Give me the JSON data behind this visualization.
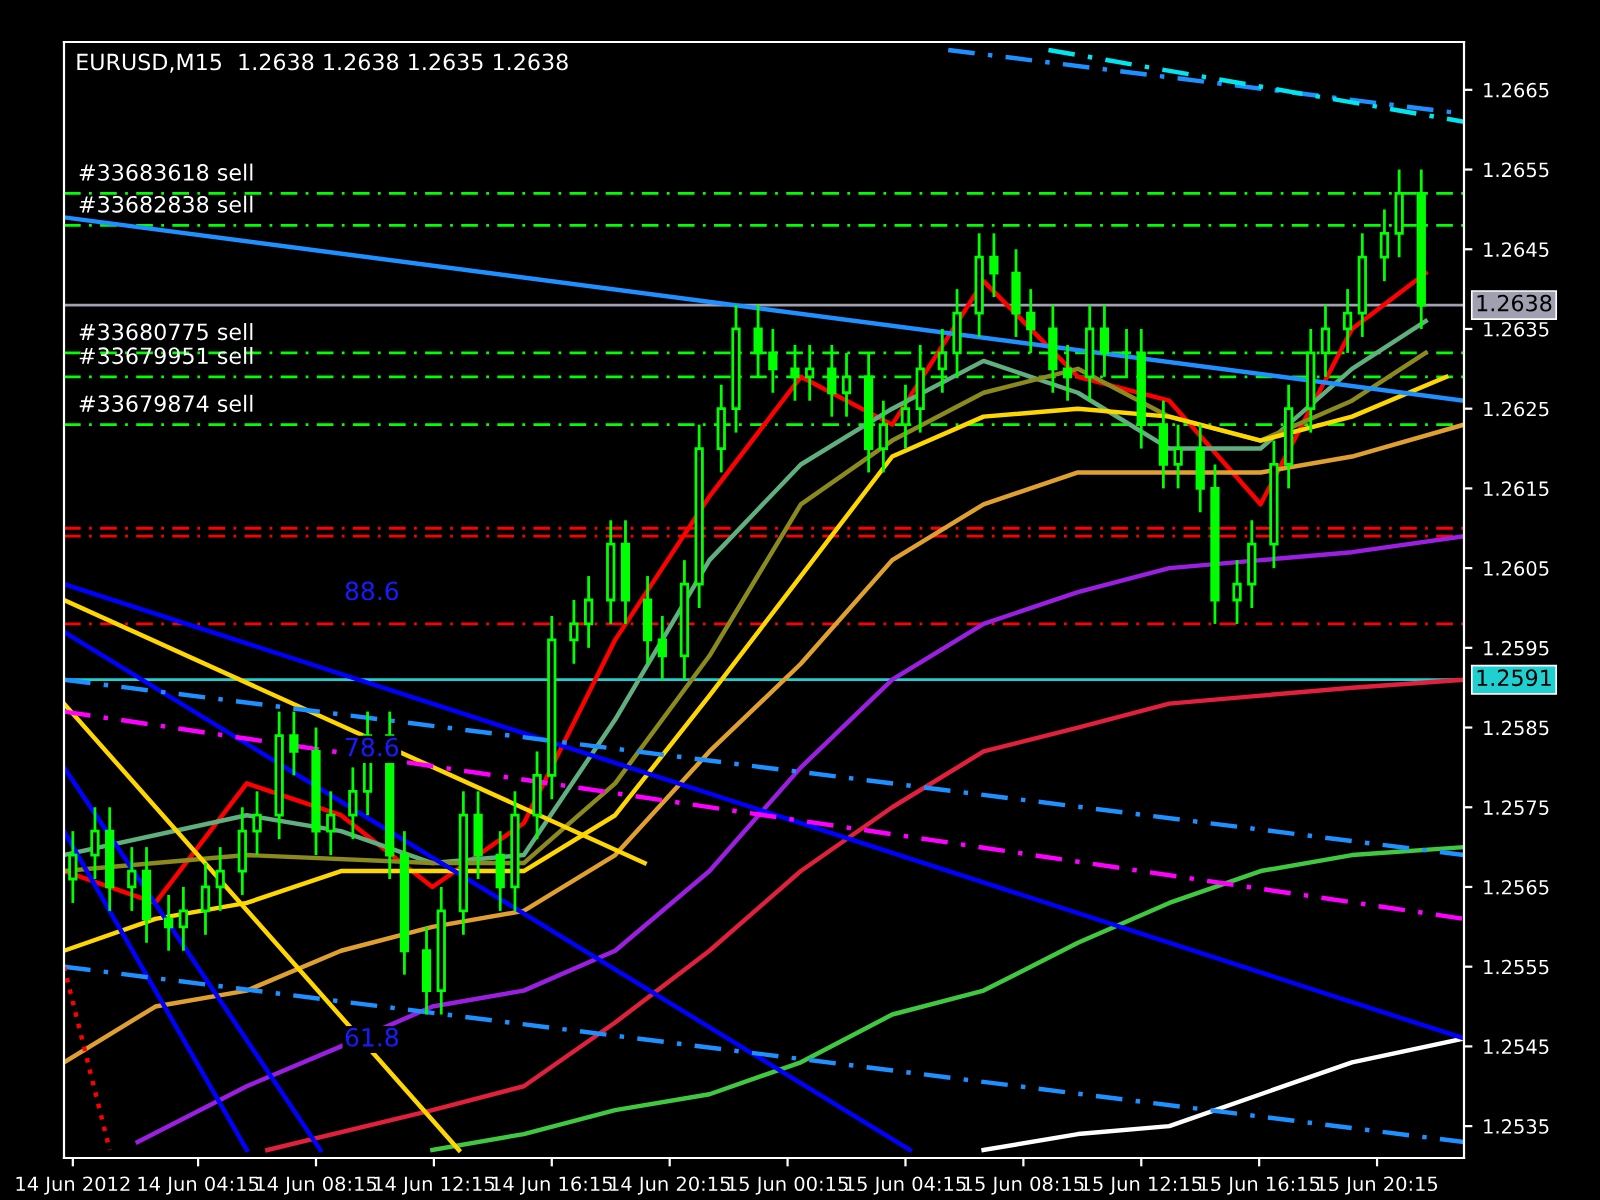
{
  "chart_data": {
    "type": "candlestick",
    "title": "EURUSD,M15  1.2638 1.2638 1.2635 1.2638",
    "color": "#00ff00",
    "x": [
      "2012-06-14T00:00",
      "2012-06-14T00:45",
      "2012-06-14T01:15",
      "2012-06-14T02:00",
      "2012-06-14T02:30",
      "2012-06-14T03:15",
      "2012-06-14T03:45",
      "2012-06-14T04:30",
      "2012-06-14T05:00",
      "2012-06-14T05:45",
      "2012-06-14T06:15",
      "2012-06-14T07:00",
      "2012-06-14T07:30",
      "2012-06-14T08:15",
      "2012-06-14T08:45",
      "2012-06-14T09:30",
      "2012-06-14T10:00",
      "2012-06-14T10:45",
      "2012-06-14T11:15",
      "2012-06-14T12:00",
      "2012-06-14T12:30",
      "2012-06-14T13:15",
      "2012-06-14T13:45",
      "2012-06-14T14:30",
      "2012-06-14T15:00",
      "2012-06-14T15:45",
      "2012-06-14T16:15",
      "2012-06-14T17:00",
      "2012-06-14T17:30",
      "2012-06-14T18:15",
      "2012-06-14T18:45",
      "2012-06-14T19:30",
      "2012-06-14T20:00",
      "2012-06-14T20:45",
      "2012-06-14T21:15",
      "2012-06-14T22:00",
      "2012-06-14T22:30",
      "2012-06-14T23:15",
      "2012-06-14T23:45",
      "2012-06-15T00:30",
      "2012-06-15T01:00",
      "2012-06-15T01:45",
      "2012-06-15T02:15",
      "2012-06-15T03:00",
      "2012-06-15T03:30",
      "2012-06-15T04:15",
      "2012-06-15T04:45",
      "2012-06-15T05:30",
      "2012-06-15T06:00",
      "2012-06-15T06:45",
      "2012-06-15T07:15",
      "2012-06-15T08:00",
      "2012-06-15T08:30",
      "2012-06-15T09:15",
      "2012-06-15T09:45",
      "2012-06-15T10:30",
      "2012-06-15T11:00",
      "2012-06-15T11:45",
      "2012-06-15T12:15",
      "2012-06-15T13:00",
      "2012-06-15T13:30",
      "2012-06-15T14:15",
      "2012-06-15T14:45",
      "2012-06-15T15:30",
      "2012-06-15T16:00",
      "2012-06-15T16:45",
      "2012-06-15T17:15",
      "2012-06-15T18:00",
      "2012-06-15T18:30",
      "2012-06-15T19:15",
      "2012-06-15T19:45",
      "2012-06-15T20:30",
      "2012-06-15T21:00",
      "2012-06-15T21:45"
    ],
    "ohlc": [
      [
        1.2566,
        1.2572,
        1.2563,
        1.2569
      ],
      [
        1.2569,
        1.2575,
        1.2566,
        1.2572
      ],
      [
        1.2572,
        1.2575,
        1.2562,
        1.2565
      ],
      [
        1.2565,
        1.257,
        1.2562,
        1.2567
      ],
      [
        1.2567,
        1.257,
        1.2558,
        1.2561
      ],
      [
        1.2561,
        1.2564,
        1.2557,
        1.256
      ],
      [
        1.256,
        1.2565,
        1.2557,
        1.2562
      ],
      [
        1.2562,
        1.2568,
        1.2559,
        1.2565
      ],
      [
        1.2565,
        1.257,
        1.2562,
        1.2567
      ],
      [
        1.2567,
        1.2575,
        1.2564,
        1.2572
      ],
      [
        1.2572,
        1.2577,
        1.2569,
        1.2574
      ],
      [
        1.2574,
        1.2587,
        1.2571,
        1.2584
      ],
      [
        1.2584,
        1.2587,
        1.2579,
        1.2582
      ],
      [
        1.2582,
        1.2585,
        1.2569,
        1.2572
      ],
      [
        1.2572,
        1.2577,
        1.2569,
        1.2574
      ],
      [
        1.2574,
        1.258,
        1.2571,
        1.2577
      ],
      [
        1.2577,
        1.2587,
        1.2574,
        1.2584
      ],
      [
        1.2584,
        1.2587,
        1.2566,
        1.2569
      ],
      [
        1.2569,
        1.2572,
        1.2554,
        1.2557
      ],
      [
        1.2557,
        1.256,
        1.2549,
        1.2552
      ],
      [
        1.2552,
        1.2565,
        1.2549,
        1.2562
      ],
      [
        1.2562,
        1.2577,
        1.2559,
        1.2574
      ],
      [
        1.2574,
        1.2577,
        1.2566,
        1.2569
      ],
      [
        1.2569,
        1.2572,
        1.2562,
        1.2565
      ],
      [
        1.2565,
        1.2577,
        1.2562,
        1.2574
      ],
      [
        1.2574,
        1.2582,
        1.2571,
        1.2579
      ],
      [
        1.2579,
        1.2599,
        1.2576,
        1.2596
      ],
      [
        1.2596,
        1.2601,
        1.2593,
        1.2598
      ],
      [
        1.2598,
        1.2604,
        1.2595,
        1.2601
      ],
      [
        1.2601,
        1.2611,
        1.2598,
        1.2608
      ],
      [
        1.2608,
        1.2611,
        1.2598,
        1.2601
      ],
      [
        1.2601,
        1.2604,
        1.2593,
        1.2596
      ],
      [
        1.2596,
        1.2599,
        1.2591,
        1.2594
      ],
      [
        1.2594,
        1.2606,
        1.2591,
        1.2603
      ],
      [
        1.2603,
        1.2623,
        1.26,
        1.262
      ],
      [
        1.262,
        1.2628,
        1.2617,
        1.2625
      ],
      [
        1.2625,
        1.2638,
        1.2622,
        1.2635
      ],
      [
        1.2635,
        1.2638,
        1.2629,
        1.2632
      ],
      [
        1.2632,
        1.2635,
        1.2627,
        1.263
      ],
      [
        1.263,
        1.2633,
        1.2626,
        1.2629
      ],
      [
        1.2629,
        1.2633,
        1.2626,
        1.263
      ],
      [
        1.263,
        1.2633,
        1.2624,
        1.2627
      ],
      [
        1.2627,
        1.2632,
        1.2624,
        1.2629
      ],
      [
        1.2629,
        1.2632,
        1.2617,
        1.262
      ],
      [
        1.262,
        1.2626,
        1.2617,
        1.2623
      ],
      [
        1.2623,
        1.2628,
        1.262,
        1.2625
      ],
      [
        1.2625,
        1.2633,
        1.2622,
        1.263
      ],
      [
        1.263,
        1.2635,
        1.2627,
        1.2632
      ],
      [
        1.2632,
        1.264,
        1.2629,
        1.2637
      ],
      [
        1.2637,
        1.2647,
        1.2634,
        1.2644
      ],
      [
        1.2644,
        1.2647,
        1.2639,
        1.2642
      ],
      [
        1.2642,
        1.2645,
        1.2634,
        1.2637
      ],
      [
        1.2637,
        1.264,
        1.2632,
        1.2635
      ],
      [
        1.2635,
        1.2638,
        1.2627,
        1.263
      ],
      [
        1.263,
        1.2633,
        1.2626,
        1.2629
      ],
      [
        1.2629,
        1.2638,
        1.2626,
        1.2635
      ],
      [
        1.2635,
        1.2638,
        1.2629,
        1.2632
      ],
      [
        1.2632,
        1.2635,
        1.2629,
        1.2632
      ],
      [
        1.2632,
        1.2635,
        1.262,
        1.2623
      ],
      [
        1.2623,
        1.2626,
        1.2615,
        1.2618
      ],
      [
        1.2618,
        1.2623,
        1.2615,
        1.262
      ],
      [
        1.262,
        1.2623,
        1.2612,
        1.2615
      ],
      [
        1.2615,
        1.2618,
        1.2598,
        1.2601
      ],
      [
        1.2601,
        1.2606,
        1.2598,
        1.2603
      ],
      [
        1.2603,
        1.2611,
        1.26,
        1.2608
      ],
      [
        1.2608,
        1.2621,
        1.2605,
        1.2618
      ],
      [
        1.2618,
        1.2628,
        1.2615,
        1.2625
      ],
      [
        1.2625,
        1.2635,
        1.2622,
        1.2632
      ],
      [
        1.2632,
        1.2638,
        1.2629,
        1.2635
      ],
      [
        1.2635,
        1.264,
        1.2632,
        1.2637
      ],
      [
        1.2637,
        1.2647,
        1.2634,
        1.2644
      ],
      [
        1.2644,
        1.265,
        1.2641,
        1.2647
      ],
      [
        1.2647,
        1.2655,
        1.2644,
        1.2652
      ],
      [
        1.2652,
        1.2655,
        1.2635,
        1.2638
      ]
    ],
    "series": [
      {
        "type": "line",
        "color": "#ff0000",
        "x": [
          "2012-06-13T23:42",
          "2012-06-14T02:48",
          "2012-06-14T05:54",
          "2012-06-14T09:06",
          "2012-06-14T12:12",
          "2012-06-14T15:18",
          "2012-06-14T18:24",
          "2012-06-14T21:36",
          "2012-06-15T00:42",
          "2012-06-15T03:48",
          "2012-06-15T06:54",
          "2012-06-15T10:06",
          "2012-06-15T13:12",
          "2012-06-15T16:18",
          "2012-06-15T19:24",
          "2012-06-15T21:54"
        ],
        "values": [
          1.2567,
          1.2563,
          1.2578,
          1.2574,
          1.2565,
          1.2573,
          1.2596,
          1.2614,
          1.2629,
          1.2623,
          1.2641,
          1.2629,
          1.2626,
          1.2613,
          1.2635,
          1.2642
        ]
      },
      {
        "type": "line",
        "color": "#5faf7f",
        "x": [
          "2012-06-13T23:42",
          "2012-06-14T05:54",
          "2012-06-14T09:06",
          "2012-06-14T12:12",
          "2012-06-14T15:18",
          "2012-06-14T18:24",
          "2012-06-14T21:36",
          "2012-06-15T00:42",
          "2012-06-15T03:48",
          "2012-06-15T06:54",
          "2012-06-15T10:06",
          "2012-06-15T13:12",
          "2012-06-15T16:18",
          "2012-06-15T19:24",
          "2012-06-15T21:54"
        ],
        "values": [
          1.2569,
          1.2574,
          1.2572,
          1.2568,
          1.2569,
          1.2586,
          1.2606,
          1.2618,
          1.2625,
          1.2631,
          1.2627,
          1.262,
          1.262,
          1.263,
          1.2636
        ]
      },
      {
        "type": "line",
        "color": "#8a8a1e",
        "x": [
          "2012-06-13T23:42",
          "2012-06-14T05:54",
          "2012-06-14T12:12",
          "2012-06-14T15:18",
          "2012-06-14T18:24",
          "2012-06-14T21:36",
          "2012-06-15T00:42",
          "2012-06-15T03:48",
          "2012-06-15T06:54",
          "2012-06-15T10:06",
          "2012-06-15T13:12",
          "2012-06-15T16:18",
          "2012-06-15T19:24",
          "2012-06-15T21:54"
        ],
        "values": [
          1.2567,
          1.2569,
          1.2568,
          1.2568,
          1.2578,
          1.2594,
          1.2613,
          1.2621,
          1.2627,
          1.263,
          1.2624,
          1.2621,
          1.2626,
          1.2632
        ]
      },
      {
        "type": "line",
        "color": "#ffd700",
        "x": [
          "2012-06-13T23:42",
          "2012-06-14T02:48",
          "2012-06-14T05:54",
          "2012-06-14T09:06",
          "2012-06-14T12:12",
          "2012-06-14T15:18",
          "2012-06-14T18:24",
          "2012-06-14T21:36",
          "2012-06-15T00:42",
          "2012-06-15T03:48",
          "2012-06-15T06:54",
          "2012-06-15T10:06",
          "2012-06-15T13:12",
          "2012-06-15T16:18",
          "2012-06-15T19:24",
          "2012-06-15T22:36"
        ],
        "values": [
          1.2557,
          1.2561,
          1.2563,
          1.2567,
          1.2567,
          1.2567,
          1.2574,
          1.2589,
          1.2604,
          1.2619,
          1.2624,
          1.2625,
          1.2624,
          1.2621,
          1.2624,
          1.2629
        ]
      },
      {
        "type": "line",
        "color": "#e0a030",
        "x": [
          "2012-06-13T23:42",
          "2012-06-14T02:48",
          "2012-06-14T05:54",
          "2012-06-14T09:06",
          "2012-06-14T12:12",
          "2012-06-14T15:18",
          "2012-06-14T18:24",
          "2012-06-14T21:36",
          "2012-06-15T00:42",
          "2012-06-15T03:48",
          "2012-06-15T06:54",
          "2012-06-15T10:06",
          "2012-06-15T13:12",
          "2012-06-15T16:18",
          "2012-06-15T19:24",
          "2012-06-15T23:12"
        ],
        "values": [
          1.2543,
          1.255,
          1.2552,
          1.2557,
          1.256,
          1.2562,
          1.2569,
          1.2582,
          1.2593,
          1.2606,
          1.2613,
          1.2617,
          1.2617,
          1.2617,
          1.2619,
          1.2623
        ]
      },
      {
        "type": "line",
        "color": "#9b1fe0",
        "x": [
          "2012-06-14T02:12",
          "2012-06-14T05:54",
          "2012-06-14T09:06",
          "2012-06-14T12:12",
          "2012-06-14T15:18",
          "2012-06-14T18:24",
          "2012-06-14T21:36",
          "2012-06-15T00:42",
          "2012-06-15T03:48",
          "2012-06-15T06:54",
          "2012-06-15T10:06",
          "2012-06-15T13:12",
          "2012-06-15T16:18",
          "2012-06-15T19:24",
          "2012-06-15T23:12"
        ],
        "values": [
          1.2533,
          1.254,
          1.2545,
          1.255,
          1.2552,
          1.2557,
          1.2567,
          1.258,
          1.2591,
          1.2598,
          1.2602,
          1.2605,
          1.2606,
          1.2607,
          1.2609
        ]
      },
      {
        "type": "line",
        "color": "#e0203c",
        "x": [
          "2012-06-14T06:36",
          "2012-06-14T12:12",
          "2012-06-14T15:18",
          "2012-06-14T18:24",
          "2012-06-14T21:36",
          "2012-06-15T00:42",
          "2012-06-15T03:48",
          "2012-06-15T06:54",
          "2012-06-15T10:06",
          "2012-06-15T13:12",
          "2012-06-15T16:18",
          "2012-06-15T19:24",
          "2012-06-15T23:12"
        ],
        "values": [
          1.2532,
          1.2537,
          1.254,
          1.2548,
          1.2557,
          1.2567,
          1.2575,
          1.2582,
          1.2585,
          1.2588,
          1.2589,
          1.259,
          1.2591
        ]
      },
      {
        "type": "line",
        "color": "#40c840",
        "x": [
          "2012-06-14T12:12",
          "2012-06-14T15:18",
          "2012-06-14T18:24",
          "2012-06-14T21:36",
          "2012-06-15T00:42",
          "2012-06-15T03:48",
          "2012-06-15T06:54",
          "2012-06-15T10:06",
          "2012-06-15T13:12",
          "2012-06-15T16:18",
          "2012-06-15T19:24",
          "2012-06-15T23:12"
        ],
        "values": [
          1.2532,
          1.2534,
          1.2537,
          1.2539,
          1.2543,
          1.2549,
          1.2552,
          1.2558,
          1.2563,
          1.2567,
          1.2569,
          1.257
        ]
      },
      {
        "type": "line",
        "color": "#ffffff",
        "x": [
          "2012-06-15T06:54",
          "2012-06-15T10:06",
          "2012-06-15T13:12",
          "2012-06-15T16:18",
          "2012-06-15T19:24",
          "2012-06-15T23:12"
        ],
        "values": [
          1.2532,
          1.2534,
          1.2535,
          1.2539,
          1.2543,
          1.2546
        ]
      },
      {
        "type": "line",
        "color": "#0000ff",
        "x": [
          "2012-06-13T23:42",
          "2012-06-15T23:12"
        ],
        "values": [
          1.2603,
          1.2546
        ]
      },
      {
        "type": "line",
        "color": "#0000ff",
        "x": [
          "2012-06-13T23:42",
          "2012-06-15T04:24"
        ],
        "values": [
          1.2597,
          1.2532
        ]
      },
      {
        "type": "line",
        "color": "#0000ff",
        "x": [
          "2012-06-13T23:42",
          "2012-06-14T08:24"
        ],
        "values": [
          1.258,
          1.2532
        ]
      },
      {
        "type": "line",
        "color": "#0000ff",
        "x": [
          "2012-06-13T23:42",
          "2012-06-14T05:54"
        ],
        "values": [
          1.2572,
          1.2532
        ]
      },
      {
        "type": "line",
        "color": "#ffd700",
        "x": [
          "2012-06-13T23:42",
          "2012-06-14T19:24"
        ],
        "values": [
          1.2601,
          1.2568
        ]
      },
      {
        "type": "line",
        "color": "#ffd700",
        "x": [
          "2012-06-13T23:42",
          "2012-06-14T13:06"
        ],
        "values": [
          1.2588,
          1.2532
        ]
      },
      {
        "type": "line",
        "color": "#1e90ff",
        "x": [
          "2012-06-13T23:42",
          "2012-06-15T23:12"
        ],
        "values": [
          1.2649,
          1.2626
        ]
      },
      {
        "type": "line",
        "color": "#1e90ff",
        "line_style": "dashed",
        "x": [
          "2012-06-13T23:42",
          "2012-06-15T23:12"
        ],
        "values": [
          1.2591,
          1.2569
        ]
      },
      {
        "type": "line",
        "color": "#ff00ff",
        "line_style": "dashed",
        "x": [
          "2012-06-13T23:42",
          "2012-06-15T23:12"
        ],
        "values": [
          1.2587,
          1.2561
        ]
      },
      {
        "type": "line",
        "color": "#1e90ff",
        "line_style": "dashed",
        "x": [
          "2012-06-13T23:42",
          "2012-06-15T23:12"
        ],
        "values": [
          1.2555,
          1.2533
        ]
      },
      {
        "type": "line",
        "color": "#1e90ff",
        "line_style": "dashed",
        "x": [
          "2012-06-15T05:42",
          "2012-06-15T23:12"
        ],
        "values": [
          1.267,
          1.2662
        ]
      },
      {
        "type": "line",
        "color": "#00e5ee",
        "line_style": "dashed",
        "x": [
          "2012-06-15T09:06",
          "2012-06-15T23:12"
        ],
        "values": [
          1.267,
          1.2661
        ]
      },
      {
        "type": "line",
        "color": "#ff0000",
        "line_style": "dotted",
        "x": [
          "2012-06-13T23:42",
          "2012-06-14T01:15"
        ],
        "values": [
          1.2555,
          1.2532
        ]
      }
    ],
    "ref_lines": [
      {
        "axis": "y",
        "value": 1.2652,
        "label": "#33683618 sell",
        "color": "#00ff00",
        "line_style": "dashed"
      },
      {
        "axis": "y",
        "value": 1.2648,
        "label": "#33682838 sell",
        "color": "#00ff00",
        "line_style": "dashed"
      },
      {
        "axis": "y",
        "value": 1.2632,
        "label": "#33680775 sell",
        "color": "#00ff00",
        "line_style": "dashed"
      },
      {
        "axis": "y",
        "value": 1.2629,
        "label": "#33679951 sell",
        "color": "#00ff00",
        "line_style": "dashed"
      },
      {
        "axis": "y",
        "value": 1.2623,
        "label": "#33679874 sell",
        "color": "#00ff00",
        "line_style": "dashed"
      },
      {
        "axis": "y",
        "value": 1.261,
        "color": "#ff0000",
        "line_style": "dashed"
      },
      {
        "axis": "y",
        "value": 1.2609,
        "color": "#ff0000",
        "line_style": "dashed"
      },
      {
        "axis": "y",
        "value": 1.2598,
        "color": "#ff0000",
        "line_style": "dashed"
      },
      {
        "axis": "y",
        "value": 1.2638,
        "label": "1.2638",
        "color": "#a0a0b0",
        "line_style": "solid"
      },
      {
        "axis": "y",
        "value": 1.2591,
        "label": "1.2591",
        "color": "#20d0d0",
        "line_style": "solid"
      }
    ],
    "annotations": [
      "88.6",
      "78.6",
      "61.8"
    ],
    "xlim": [
      "2012-06-13T23:42",
      "2012-06-15T23:12"
    ],
    "ylim": [
      1.2531,
      1.2671
    ],
    "xticks": [
      {
        "value": "2012-06-14T00:00",
        "label": "14 Jun 2012"
      },
      {
        "value": "2012-06-14T04:15",
        "label": "14 Jun 04:15"
      },
      {
        "value": "2012-06-14T08:15",
        "label": "14 Jun 08:15"
      },
      {
        "value": "2012-06-14T12:15",
        "label": "14 Jun 12:15"
      },
      {
        "value": "2012-06-14T16:15",
        "label": "14 Jun 16:15"
      },
      {
        "value": "2012-06-14T20:15",
        "label": "14 Jun 20:15"
      },
      {
        "value": "2012-06-15T00:15",
        "label": "15 Jun 00:15"
      },
      {
        "value": "2012-06-15T04:15",
        "label": "15 Jun 04:15"
      },
      {
        "value": "2012-06-15T08:15",
        "label": "15 Jun 08:15"
      },
      {
        "value": "2012-06-15T12:15",
        "label": "15 Jun 12:15"
      },
      {
        "value": "2012-06-15T16:15",
        "label": "15 Jun 16:15"
      },
      {
        "value": "2012-06-15T20:15",
        "label": "15 Jun 20:15"
      }
    ],
    "yticks": [
      1.2535,
      1.2545,
      1.2555,
      1.2565,
      1.2575,
      1.2585,
      1.2595,
      1.2605,
      1.2615,
      1.2625,
      1.2635,
      1.2645,
      1.2655,
      1.2665
    ]
  }
}
